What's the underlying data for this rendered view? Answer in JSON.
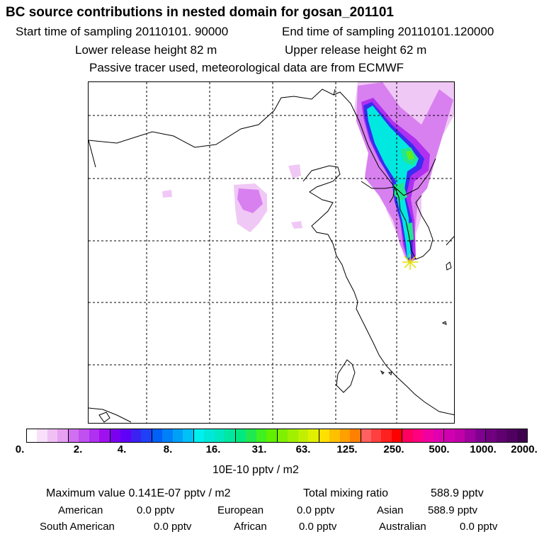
{
  "header": {
    "title": "BC  source contributions in nested domain for gosan_201101",
    "start_time": "Start time of sampling 20110101. 90000",
    "end_time": "End time of sampling 20110101.120000",
    "lower_height": "Lower release height   82 m",
    "upper_height": "Upper release height   62 m",
    "note": "Passive tracer used, meteorological data are from ECMWF"
  },
  "map": {
    "receptor_marker": "asterisk",
    "plume_colors": {
      "light": "#f0c8f5",
      "mid": "#d880f0",
      "violet": "#b030f0",
      "blue": "#3a2cf0",
      "cyan": "#00e8e0",
      "green": "#20e890",
      "lime": "#60f020",
      "receptor": "#e0e000"
    }
  },
  "colorbar": {
    "ticks": [
      "0.",
      "2.",
      "4.",
      "8.",
      "16.",
      "31.",
      "63.",
      "125.",
      "250.",
      "500.",
      "1000.",
      "2000."
    ],
    "colors": [
      "#ffffff",
      "#f8e0fa",
      "#f0c0f5",
      "#e8a0f2",
      "#d070f0",
      "#c050f0",
      "#b030f0",
      "#9f10f0",
      "#7a00f0",
      "#6000f8",
      "#3b22f0",
      "#2040f8",
      "#0060f8",
      "#0080f8",
      "#00a0f8",
      "#00c0f8",
      "#00f0f0",
      "#00e8d8",
      "#00e8c0",
      "#00e8a0",
      "#00e880",
      "#20e850",
      "#40f020",
      "#60f000",
      "#80f000",
      "#a0f000",
      "#c0f000",
      "#e0f000",
      "#ffe000",
      "#ffc000",
      "#ffa000",
      "#ff8000",
      "#ff6060",
      "#ff4040",
      "#ff2020",
      "#ff0000",
      "#ff0060",
      "#ff0080",
      "#f000a0",
      "#e000b0",
      "#d000b0",
      "#c000a8",
      "#a000a0",
      "#800090",
      "#700080",
      "#600070",
      "#500060",
      "#400050"
    ],
    "units": "10E-10 pptv / m2"
  },
  "summary": {
    "max_value": "Maximum value  0.141E-07 pptv / m2",
    "total_mixing": "Total mixing ratio",
    "total_value": "588.9 pptv",
    "regions": [
      {
        "name": "American",
        "value": "0.0 pptv"
      },
      {
        "name": "European",
        "value": "0.0 pptv"
      },
      {
        "name": "Asian",
        "value": "588.9 pptv"
      },
      {
        "name": "South American",
        "value": "0.0 pptv"
      },
      {
        "name": "African",
        "value": "0.0 pptv"
      },
      {
        "name": "Australian",
        "value": "0.0 pptv"
      }
    ]
  }
}
